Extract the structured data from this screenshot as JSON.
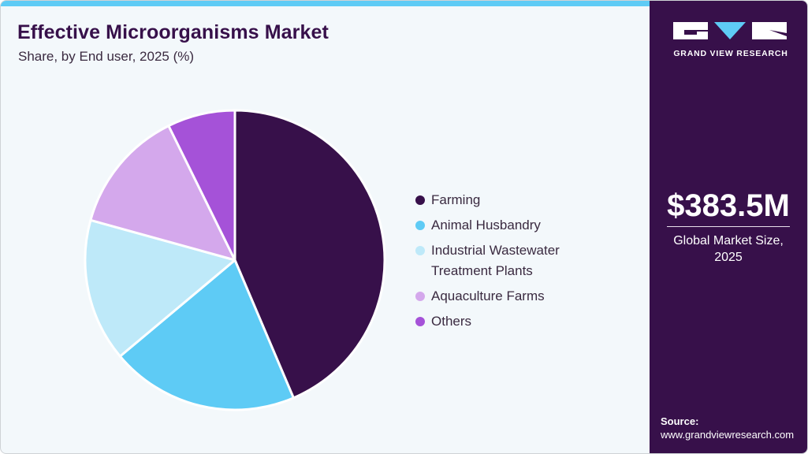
{
  "header": {
    "title": "Effective Microorganisms Market",
    "subtitle": "Share, by End user, 2025 (%)"
  },
  "colors": {
    "accent_bar": "#5ecbf5",
    "sidebar_bg": "#37104a",
    "main_bg": "#f3f8fb",
    "title": "#37104a"
  },
  "legend": {
    "items": [
      {
        "label": "Farming",
        "color": "#37104a"
      },
      {
        "label": "Animal Husbandry",
        "color": "#5ecbf5"
      },
      {
        "label": "Industrial Wastewater Treatment Plants",
        "line1": "Industrial Wastewater",
        "line2": "Treatment Plants",
        "color": "#bee9f9"
      },
      {
        "label": "Aquaculture Farms",
        "color": "#d4a8ec"
      },
      {
        "label": "Others",
        "color": "#a552d8"
      }
    ]
  },
  "sidebar": {
    "brand": "GRAND VIEW RESEARCH",
    "market_size": "$383.5M",
    "market_caption": "Global Market Size, 2025",
    "source_label": "Source:",
    "source_url": "www.grandviewresearch.com"
  },
  "chart_data": {
    "type": "pie",
    "title": "Effective Microorganisms Market",
    "subtitle": "Share, by End user, 2025 (%)",
    "categories": [
      "Farming",
      "Animal Husbandry",
      "Industrial Wastewater Treatment Plants",
      "Aquaculture Farms",
      "Others"
    ],
    "values": [
      43.6,
      20.3,
      15.4,
      13.4,
      7.3
    ],
    "colors": [
      "#37104a",
      "#5ecbf5",
      "#bee9f9",
      "#d4a8ec",
      "#a552d8"
    ],
    "start_angle": "12 o'clock, clockwise",
    "legend_position": "right",
    "unit": "%"
  }
}
